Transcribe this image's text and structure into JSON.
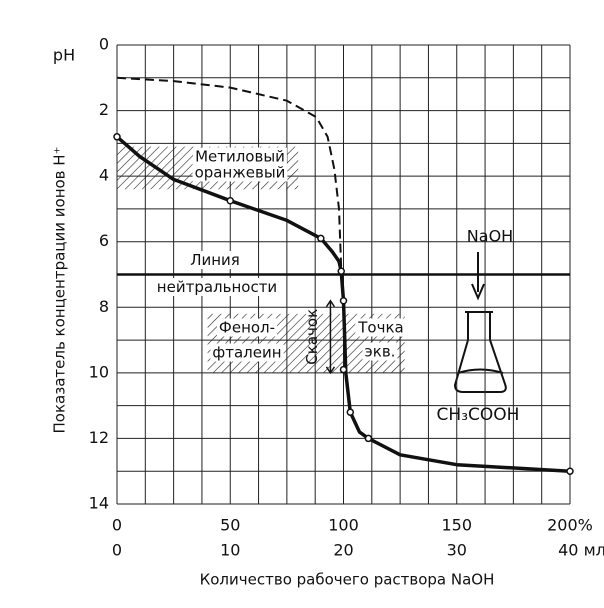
{
  "chart_data": {
    "type": "line",
    "y_title": "pH",
    "ylabel": "Показатель концентрации ионов H⁺",
    "xlabel": "Количество рабочего раствора NaOH",
    "xlim": [
      0,
      200
    ],
    "xticks": [
      0,
      50,
      100,
      150,
      {
        "value": 200,
        "label": "200%"
      }
    ],
    "x2lim": [
      0,
      40
    ],
    "x2ticks": [
      0,
      10,
      20,
      30,
      {
        "value": 40,
        "label": "40 мл"
      }
    ],
    "ylim": [
      0,
      14
    ],
    "y_inverted": true,
    "yticks": [
      0,
      2,
      4,
      6,
      8,
      10,
      12,
      14
    ],
    "grid": true,
    "xgrid": [
      0,
      12.5,
      25,
      37.5,
      50,
      62.5,
      75,
      87.5,
      100,
      112.5,
      125,
      137.5,
      150,
      162.5,
      175,
      187.5,
      200
    ],
    "ygrid": [
      0,
      1,
      2,
      3,
      4,
      5,
      6,
      7,
      8,
      9,
      10,
      11,
      12,
      13,
      14
    ],
    "series": [
      {
        "style": "solid",
        "color": "#111",
        "x": [
          0,
          10,
          25,
          50,
          75,
          90,
          95,
          98,
          99,
          100,
          101,
          103,
          107,
          111,
          125,
          150,
          200
        ],
        "values": [
          2.8,
          3.4,
          4.1,
          4.75,
          5.35,
          5.9,
          6.3,
          6.6,
          6.9,
          7.8,
          10.0,
          11.2,
          11.8,
          12.0,
          12.5,
          12.8,
          13.0
        ]
      },
      {
        "style": "dashed",
        "color": "#111",
        "x": [
          0,
          25,
          50,
          75,
          88,
          93,
          96,
          98,
          99
        ],
        "values": [
          1.0,
          1.1,
          1.3,
          1.7,
          2.2,
          2.8,
          3.8,
          5.0,
          6.8
        ]
      },
      {
        "style": "points",
        "color": "#111",
        "x": [
          0,
          50,
          90,
          99,
          100,
          100,
          103,
          111,
          200
        ],
        "values": [
          2.8,
          4.75,
          5.9,
          6.9,
          7.8,
          9.9,
          11.2,
          12.0,
          13.0
        ]
      }
    ],
    "neutral_line": {
      "y": 7,
      "label": [
        "Линия",
        "нейтральности"
      ]
    },
    "bands": [
      {
        "label": [
          "Метиловый",
          "оранжевый"
        ],
        "ylim": [
          3.1,
          4.4
        ],
        "xlim": [
          0,
          80
        ]
      },
      {
        "label": [
          "Фенол-",
          "фталеин"
        ],
        "ylim": [
          8.2,
          10
        ],
        "xlim": [
          40,
          127
        ]
      }
    ],
    "jump": {
      "label": "Скачок",
      "ylim": [
        7.8,
        10
      ],
      "x": 96
    },
    "equivalence": {
      "label": [
        "Точка",
        "экв."
      ],
      "x": 100
    },
    "flask": {
      "reagent": "NaOH",
      "content": "CH₃COOH"
    }
  }
}
